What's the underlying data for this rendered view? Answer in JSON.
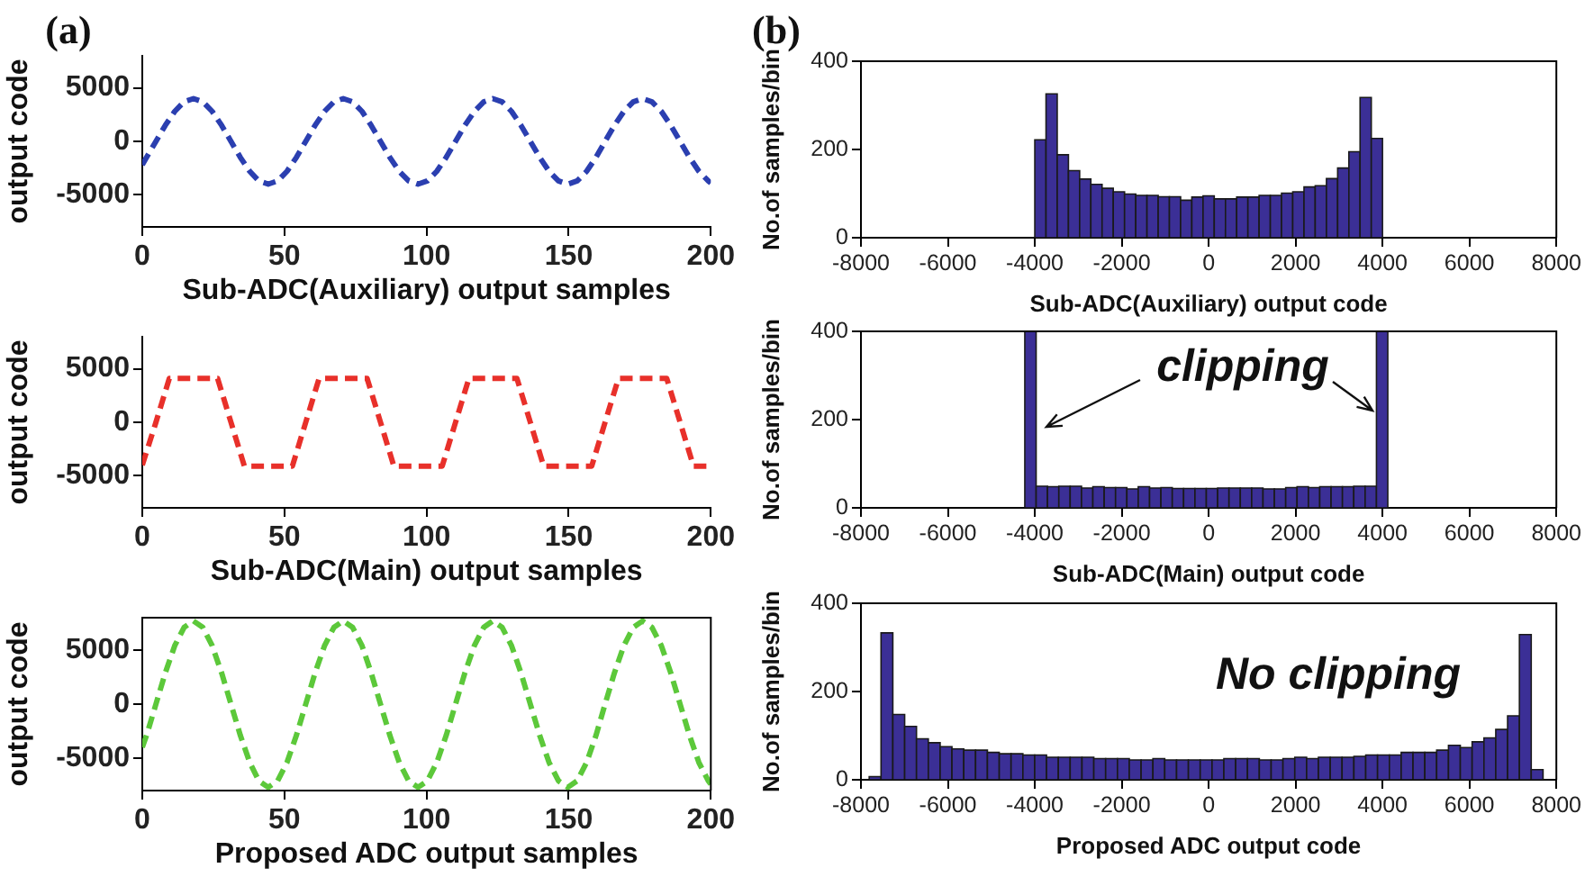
{
  "chart_data": [
    {
      "type": "line",
      "xlabel": "Sub-ADC(Auxiliary) output samples",
      "ylabel": "output code",
      "xlim": [
        0,
        200
      ],
      "xticks": [
        0,
        50,
        100,
        150,
        200
      ],
      "ylim": [
        -8000,
        8000
      ],
      "yticks": [
        -5000,
        0,
        5000
      ],
      "line_style": "dashed",
      "marker": "none",
      "annotations": [
        "(a)"
      ],
      "series": [
        {
          "color": "#2b3fb0",
          "x": [
            0,
            1.5,
            4.8,
            8.1,
            11.4,
            14.7,
            18.0,
            21.3,
            24.6,
            27.9,
            31.2,
            34.5,
            37.8,
            41.0,
            44.3,
            47.6,
            50.9,
            54.2,
            57.5,
            60.8,
            64.1,
            67.4,
            70.7,
            74.0,
            77.3,
            80.5,
            83.8,
            87.1,
            90.4,
            93.7,
            97.0,
            100.3,
            103.6,
            106.9,
            110.2,
            113.5,
            116.8,
            120.1,
            123.3,
            126.6,
            129.9,
            133.2,
            136.5,
            139.8,
            143.1,
            146.4,
            149.7,
            153.0,
            156.3,
            159.6,
            162.8,
            166.1,
            169.4,
            172.7,
            176.0,
            179.3,
            182.6,
            185.9,
            189.2,
            192.5,
            195.8,
            199.1,
            200
          ],
          "values": [
            -2200,
            -1500,
            0,
            1500,
            2800,
            3700,
            4000,
            3700,
            2800,
            1500,
            0,
            -1500,
            -2800,
            -3700,
            -4000,
            -3700,
            -2800,
            -1500,
            0,
            1500,
            2800,
            3700,
            4000,
            3700,
            2800,
            1500,
            0,
            -1500,
            -2800,
            -3700,
            -4000,
            -3700,
            -2800,
            -1500,
            0,
            1500,
            2800,
            3700,
            4000,
            3700,
            2800,
            1500,
            0,
            -1500,
            -2800,
            -3700,
            -4000,
            -3700,
            -2800,
            -1500,
            0,
            1500,
            2800,
            3700,
            4000,
            3700,
            2800,
            1500,
            0,
            -1500,
            -2800,
            -3700,
            -3900
          ]
        }
      ]
    },
    {
      "type": "histogram",
      "xlabel": "Sub-ADC(Auxiliary) output code",
      "ylabel": "No.of samples/bin",
      "xlim": [
        -8000,
        8000
      ],
      "xticks": [
        -8000,
        -6000,
        -4000,
        -2000,
        0,
        2000,
        4000,
        6000,
        8000
      ],
      "ylim": [
        0,
        400
      ],
      "yticks": [
        0,
        200,
        400
      ],
      "color": "#3b2f96",
      "annotations": [
        "(b)"
      ],
      "bins": [
        -4000,
        -3742,
        -3484,
        -3226,
        -2968,
        -2710,
        -2452,
        -2194,
        -1935,
        -1677,
        -1419,
        -1161,
        -903,
        -645,
        -387,
        -129,
        129,
        387,
        645,
        903,
        1161,
        1419,
        1677,
        1935,
        2194,
        2452,
        2710,
        2968,
        3226,
        3484,
        3742,
        4000
      ],
      "values": [
        222,
        326,
        188,
        152,
        133,
        121,
        112,
        104,
        99,
        96,
        96,
        93,
        93,
        85,
        92,
        95,
        88,
        88,
        92,
        92,
        96,
        96,
        101,
        104,
        115,
        118,
        134,
        158,
        195,
        318,
        225
      ]
    },
    {
      "type": "line",
      "xlabel": "Sub-ADC(Main) output samples",
      "ylabel": "output code",
      "xlim": [
        0,
        200
      ],
      "xticks": [
        0,
        50,
        100,
        150,
        200
      ],
      "ylim": [
        -8000,
        8000
      ],
      "yticks": [
        -5000,
        0,
        5000
      ],
      "line_style": "dashed",
      "marker": "none",
      "series": [
        {
          "color": "#e8302a",
          "x": [
            0,
            4.8,
            9.5,
            26.5,
            31.2,
            35.9,
            52.8,
            57.5,
            62.2,
            79.1,
            83.8,
            88.5,
            105.5,
            110.2,
            114.9,
            131.8,
            136.5,
            141.2,
            158.1,
            162.8,
            167.5,
            184.5,
            189.2,
            193.9,
            200
          ],
          "values": [
            -4000,
            0,
            4100,
            4100,
            0,
            -4100,
            -4100,
            0,
            4100,
            4100,
            0,
            -4100,
            -4100,
            0,
            4100,
            4100,
            0,
            -4100,
            -4100,
            0,
            4100,
            4100,
            0,
            -4100,
            -4100
          ]
        }
      ]
    },
    {
      "type": "histogram",
      "xlabel": "Sub-ADC(Main) output code",
      "ylabel": "No.of samples/bin",
      "xlim": [
        -8000,
        8000
      ],
      "xticks": [
        -8000,
        -6000,
        -4000,
        -2000,
        0,
        2000,
        4000,
        6000,
        8000
      ],
      "ylim": [
        0,
        400
      ],
      "yticks": [
        0,
        200,
        400
      ],
      "color": "#3b2f96",
      "annotations": [
        "clipping"
      ],
      "bins": [
        -4230,
        -3969,
        -3708,
        -3447,
        -3186,
        -2925,
        -2664,
        -2403,
        -2142,
        -1881,
        -1620,
        -1359,
        -1098,
        -837,
        -576,
        -315,
        -54,
        207,
        468,
        729,
        990,
        1251,
        1512,
        1773,
        2034,
        2295,
        2556,
        2817,
        3078,
        3339,
        3600,
        3861,
        4122
      ],
      "values": [
        400,
        49,
        48,
        49,
        49,
        45,
        48,
        46,
        46,
        43,
        48,
        45,
        46,
        44,
        44,
        44,
        44,
        45,
        45,
        45,
        45,
        43,
        43,
        46,
        48,
        46,
        48,
        48,
        48,
        49,
        49,
        400
      ]
    },
    {
      "type": "line",
      "xlabel": "Proposed ADC output samples",
      "ylabel": "output code",
      "xlim": [
        0,
        200
      ],
      "xticks": [
        0,
        50,
        100,
        150,
        200
      ],
      "ylim": [
        -8000,
        8000
      ],
      "yticks": [
        -5000,
        0,
        5000
      ],
      "line_style": "dashed",
      "marker": "none",
      "series": [
        {
          "color": "#5cc83a",
          "x": [
            0,
            1.5,
            4.8,
            8.1,
            11.4,
            14.7,
            18.0,
            21.3,
            24.6,
            27.9,
            31.2,
            34.5,
            37.8,
            41.0,
            44.3,
            47.6,
            50.9,
            54.2,
            57.5,
            60.8,
            64.1,
            67.4,
            70.7,
            74.0,
            77.3,
            80.5,
            83.8,
            87.1,
            90.4,
            93.7,
            97.0,
            100.3,
            103.6,
            106.9,
            110.2,
            113.5,
            116.8,
            120.1,
            123.3,
            126.6,
            129.9,
            133.2,
            136.5,
            139.8,
            143.1,
            146.4,
            149.7,
            153.0,
            156.3,
            159.6,
            162.8,
            166.1,
            169.4,
            172.7,
            176.0,
            179.3,
            182.6,
            185.9,
            189.2,
            192.5,
            195.8,
            199.1,
            200
          ],
          "values": [
            -4000,
            -2900,
            0,
            2900,
            5400,
            7100,
            7700,
            7100,
            5400,
            2900,
            0,
            -2900,
            -5400,
            -7100,
            -7700,
            -7100,
            -5400,
            -2900,
            0,
            2900,
            5400,
            7100,
            7700,
            7100,
            5400,
            2900,
            0,
            -2900,
            -5400,
            -7100,
            -7700,
            -7100,
            -5400,
            -2900,
            0,
            2900,
            5400,
            7100,
            7700,
            7100,
            5400,
            2900,
            0,
            -2900,
            -5400,
            -7100,
            -7700,
            -7100,
            -5400,
            -2900,
            0,
            2900,
            5400,
            7100,
            7700,
            7100,
            5400,
            2900,
            0,
            -2900,
            -5400,
            -7100,
            -7400
          ]
        }
      ]
    },
    {
      "type": "histogram",
      "xlabel": "Proposed ADC output code",
      "ylabel": "No.of samples/bin",
      "xlim": [
        -8000,
        8000
      ],
      "xticks": [
        -8000,
        -6000,
        -4000,
        -2000,
        0,
        2000,
        4000,
        6000,
        8000
      ],
      "ylim": [
        0,
        400
      ],
      "yticks": [
        0,
        200,
        400
      ],
      "color": "#3b2f96",
      "annotations": [
        "No clipping"
      ],
      "bins": [
        -7810,
        -7538,
        -7266,
        -6994,
        -6722,
        -6450,
        -6178,
        -5906,
        -5634,
        -5362,
        -5090,
        -4818,
        -4546,
        -4274,
        -4002,
        -3730,
        -3458,
        -3186,
        -2914,
        -2642,
        -2370,
        -2098,
        -1826,
        -1554,
        -1282,
        -1010,
        -738,
        -466,
        -194,
        78,
        350,
        622,
        894,
        1166,
        1438,
        1710,
        1982,
        2254,
        2526,
        2798,
        3070,
        3342,
        3614,
        3886,
        4158,
        4430,
        4702,
        4974,
        5246,
        5518,
        5790,
        6062,
        6334,
        6606,
        6878,
        7150,
        7422,
        7694
      ],
      "values": [
        7,
        333,
        148,
        121,
        93,
        84,
        75,
        70,
        67,
        67,
        62,
        59,
        59,
        56,
        56,
        51,
        51,
        51,
        51,
        48,
        48,
        48,
        45,
        45,
        48,
        45,
        45,
        45,
        45,
        45,
        48,
        48,
        48,
        45,
        45,
        48,
        51,
        48,
        51,
        51,
        51,
        53,
        56,
        56,
        56,
        62,
        62,
        62,
        67,
        78,
        73,
        86,
        95,
        114,
        145,
        329,
        23
      ]
    }
  ]
}
